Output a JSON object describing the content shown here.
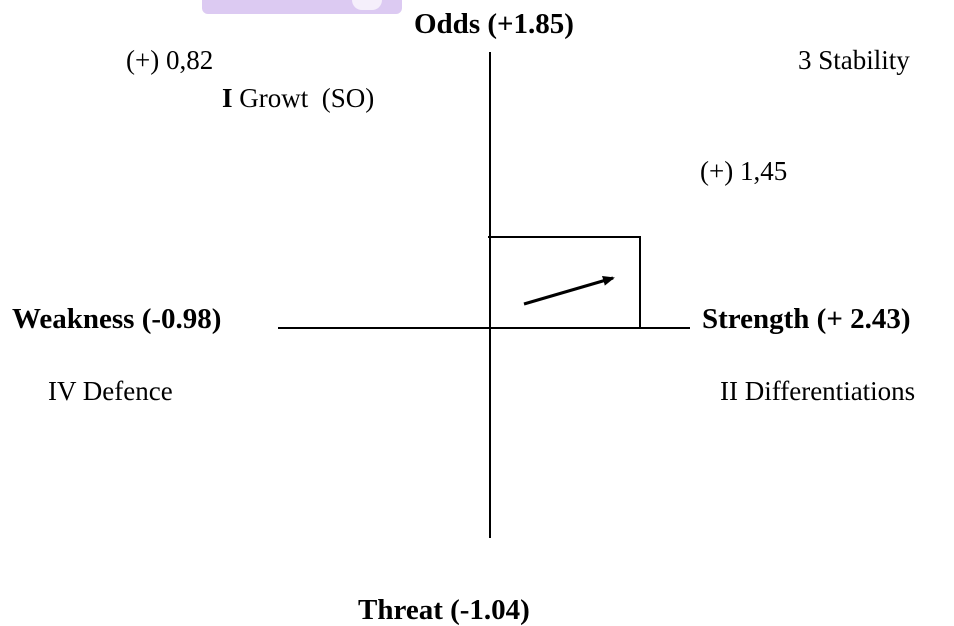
{
  "colors": {
    "tab_accent": "#dccaf2",
    "line": "#000000"
  },
  "axes": {
    "top": "Odds (+1.85)",
    "right": "Strength (+ 2.43)",
    "left": "Weakness (-0.98)",
    "bottom": "Threat (-1.04)"
  },
  "quadrants": {
    "q1_value": "(+) 0,82",
    "q1_numeral": "I",
    "q1_label": "Growt  (SO)",
    "q2_label": "II Differentiations",
    "q3_label": "3 Stability",
    "q4_label": "IV Defence"
  },
  "position_value": "(+) 1,45"
}
